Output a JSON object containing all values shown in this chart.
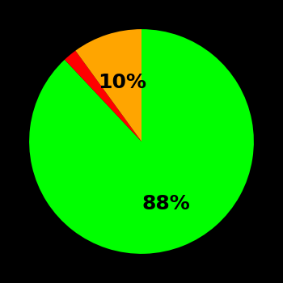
{
  "slices": [
    88,
    2,
    10
  ],
  "colors": [
    "#00ff00",
    "#ff0000",
    "#ffa500"
  ],
  "labels": [
    "88%",
    "",
    "10%"
  ],
  "label_colors": [
    "#000000",
    "#000000",
    "#000000"
  ],
  "background_color": "#000000",
  "startangle": 90,
  "figsize": [
    3.5,
    3.5
  ],
  "dpi": 100,
  "label_offsets": [
    0.6,
    0.0,
    0.55
  ]
}
